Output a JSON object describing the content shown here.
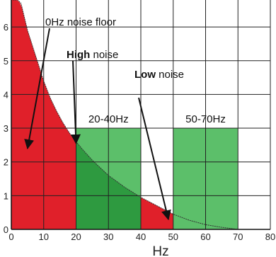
{
  "chart_data": {
    "type": "area",
    "title": "",
    "xlabel": "Hz",
    "ylabel": "",
    "xlim": [
      0,
      80
    ],
    "ylim": [
      0,
      6.8
    ],
    "x_ticks": [
      0,
      10,
      20,
      30,
      40,
      50,
      60,
      70,
      80
    ],
    "y_ticks": [
      0,
      1,
      2,
      3,
      4,
      5,
      6
    ],
    "grid": true,
    "curve": {
      "x": [
        0.5,
        1,
        2,
        3,
        4,
        5,
        6,
        7,
        8,
        10,
        12,
        14,
        16,
        18,
        20,
        22,
        25,
        30,
        35,
        40,
        45,
        50,
        55,
        60,
        65,
        70
      ],
      "y": [
        6.8,
        6.8,
        6.8,
        6.7,
        6.3,
        5.9,
        5.6,
        5.3,
        5.0,
        4.4,
        3.9,
        3.5,
        3.15,
        2.85,
        2.6,
        2.37,
        2.05,
        1.6,
        1.25,
        0.95,
        0.7,
        0.45,
        0.27,
        0.14,
        0.06,
        0.0
      ]
    },
    "regions": {
      "high_noise": {
        "from": 0,
        "to": 50
      },
      "band_low": {
        "label": "20-40Hz",
        "from": 20,
        "to": 40,
        "top": 3
      },
      "band_high": {
        "label": "50-70Hz",
        "from": 50,
        "to": 70,
        "top": 3
      }
    },
    "annotations": [
      {
        "text": "0Hz noise floor",
        "bold_part": "",
        "rest": "0Hz noise floor",
        "target_x": 5,
        "target_y": 2.4
      },
      {
        "text": "High noise",
        "bold_part": "High",
        "rest": " noise",
        "target_x": 20,
        "target_y": 2.55
      },
      {
        "text": "Low noise",
        "bold_part": "Low",
        "rest": " noise",
        "target_x": 48.5,
        "target_y": 0.3
      }
    ],
    "colors": {
      "high_noise": "#e0202a",
      "band": "#5cbf6a",
      "band_overlap": "#2e9a40",
      "grid": "#222222"
    }
  }
}
